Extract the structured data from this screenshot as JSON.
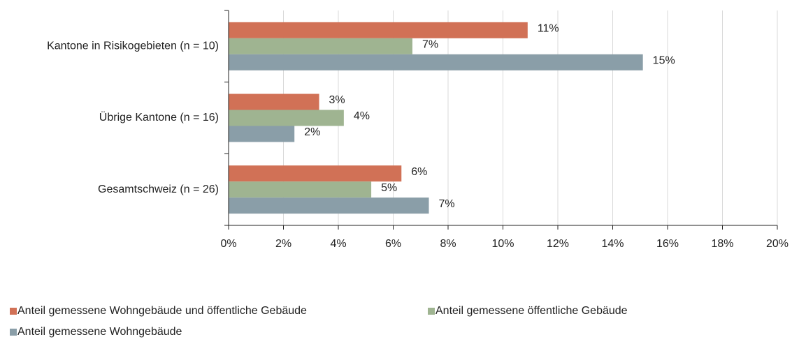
{
  "chart_data": {
    "type": "hbar",
    "categories": [
      "Kantone in Risikogebieten (n = 10)",
      "Übrige Kantone (n = 16)",
      "Gesamtschweiz (n = 26)"
    ],
    "series": [
      {
        "name": "Anteil gemessene Wohngebäude und öffentliche Gebäude",
        "color": "#d17156",
        "values": [
          10.9,
          3.3,
          6.3
        ],
        "value_labels": [
          "11%",
          "3%",
          "6%"
        ]
      },
      {
        "name": "Anteil gemessene öffentliche Gebäude",
        "color": "#9fb491",
        "values": [
          6.7,
          4.2,
          5.2
        ],
        "value_labels": [
          "7%",
          "4%",
          "5%"
        ]
      },
      {
        "name": "Anteil gemessene Wohngebäude",
        "color": "#8a9ea8",
        "values": [
          15.1,
          2.4,
          7.3
        ],
        "value_labels": [
          "15%",
          "2%",
          "7%"
        ]
      }
    ],
    "xlim": [
      0,
      20
    ],
    "xticks": [
      {
        "value": 0,
        "label": "0%"
      },
      {
        "value": 2,
        "label": "2%"
      },
      {
        "value": 4,
        "label": "4%"
      },
      {
        "value": 6,
        "label": "6%"
      },
      {
        "value": 8,
        "label": "8%"
      },
      {
        "value": 10,
        "label": "10%"
      },
      {
        "value": 12,
        "label": "12%"
      },
      {
        "value": 14,
        "label": "14%"
      },
      {
        "value": 16,
        "label": "16%"
      },
      {
        "value": 18,
        "label": "18%"
      },
      {
        "value": 20,
        "label": "20%"
      }
    ],
    "grid": true,
    "legend": "bottom"
  }
}
